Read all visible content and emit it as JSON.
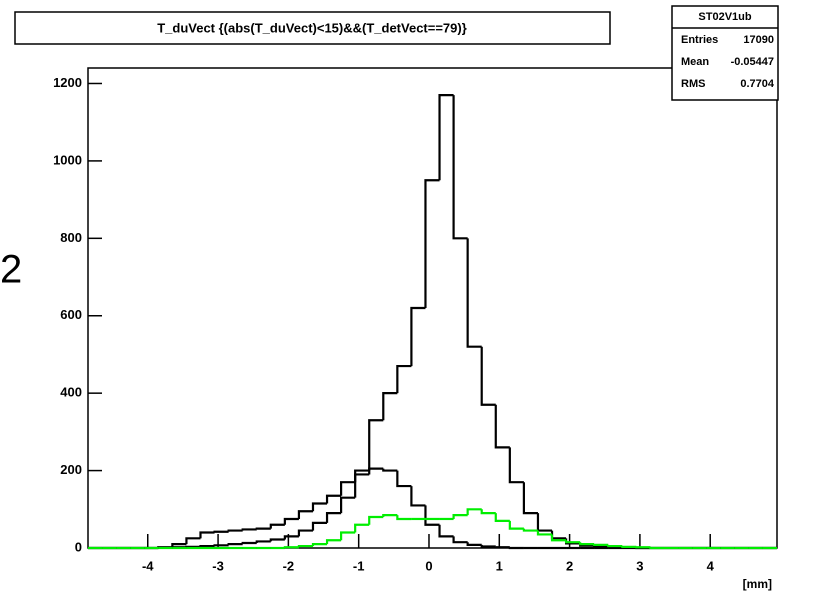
{
  "chart_data": {
    "type": "histogram",
    "title": "T_duVect {(abs(T_duVect)<15)&&(T_detVect==79)}",
    "x_label": "[mm]",
    "side_label": "2",
    "stats": {
      "name": "ST02V1ub",
      "rows": [
        [
          "Entries",
          "17090"
        ],
        [
          "Mean",
          "-0.05447"
        ],
        [
          "RMS",
          "0.7704"
        ]
      ]
    },
    "xlim": [
      -4.85,
      4.95
    ],
    "ylim": [
      0,
      1240
    ],
    "xticks": [
      -4,
      -3,
      -2,
      -1,
      0,
      1,
      2,
      3,
      4
    ],
    "yticks": [
      0,
      200,
      400,
      600,
      800,
      1000,
      1200
    ],
    "bins": [
      -4.85,
      -4.65,
      -4.45,
      -4.25,
      -4.05,
      -3.85,
      -3.65,
      -3.45,
      -3.25,
      -3.05,
      -2.85,
      -2.65,
      -2.45,
      -2.25,
      -2.05,
      -1.85,
      -1.65,
      -1.45,
      -1.25,
      -1.05,
      -0.85,
      -0.65,
      -0.45,
      -0.25,
      -0.05,
      0.15,
      0.35,
      0.55,
      0.75,
      0.95,
      1.15,
      1.35,
      1.55,
      1.75,
      1.95,
      2.15,
      2.35,
      2.55,
      2.75,
      2.95,
      3.15,
      3.35,
      3.55,
      3.75,
      3.95,
      4.15,
      4.35,
      4.55,
      4.75,
      4.95
    ],
    "series": [
      {
        "color": "#000000",
        "values": [
          0,
          0,
          0,
          0,
          0,
          1,
          2,
          3,
          5,
          7,
          10,
          13,
          17,
          22,
          30,
          45,
          65,
          90,
          130,
          200,
          330,
          400,
          470,
          620,
          950,
          1170,
          800,
          520,
          370,
          260,
          170,
          90,
          45,
          25,
          12,
          6,
          3,
          2,
          1,
          0,
          0,
          0,
          0,
          0,
          0,
          0,
          0,
          0,
          0
        ]
      },
      {
        "color": "#000000",
        "values": [
          0,
          0,
          0,
          0,
          0,
          2,
          10,
          25,
          40,
          42,
          45,
          48,
          50,
          60,
          75,
          95,
          115,
          135,
          170,
          190,
          205,
          200,
          160,
          110,
          60,
          30,
          15,
          8,
          4,
          2,
          0,
          0,
          0,
          0,
          0,
          0,
          0,
          0,
          0,
          0,
          0,
          0,
          0,
          0,
          0,
          0,
          0,
          0,
          0
        ]
      },
      {
        "color": "#00ee00",
        "values": [
          0,
          0,
          0,
          0,
          0,
          0,
          0,
          0,
          0,
          0,
          0,
          0,
          0,
          0,
          2,
          5,
          10,
          20,
          40,
          60,
          80,
          85,
          75,
          75,
          75,
          75,
          85,
          100,
          90,
          70,
          50,
          45,
          35,
          20,
          15,
          10,
          8,
          5,
          3,
          2,
          0,
          0,
          0,
          0,
          0,
          0,
          0,
          0,
          0
        ]
      }
    ]
  }
}
